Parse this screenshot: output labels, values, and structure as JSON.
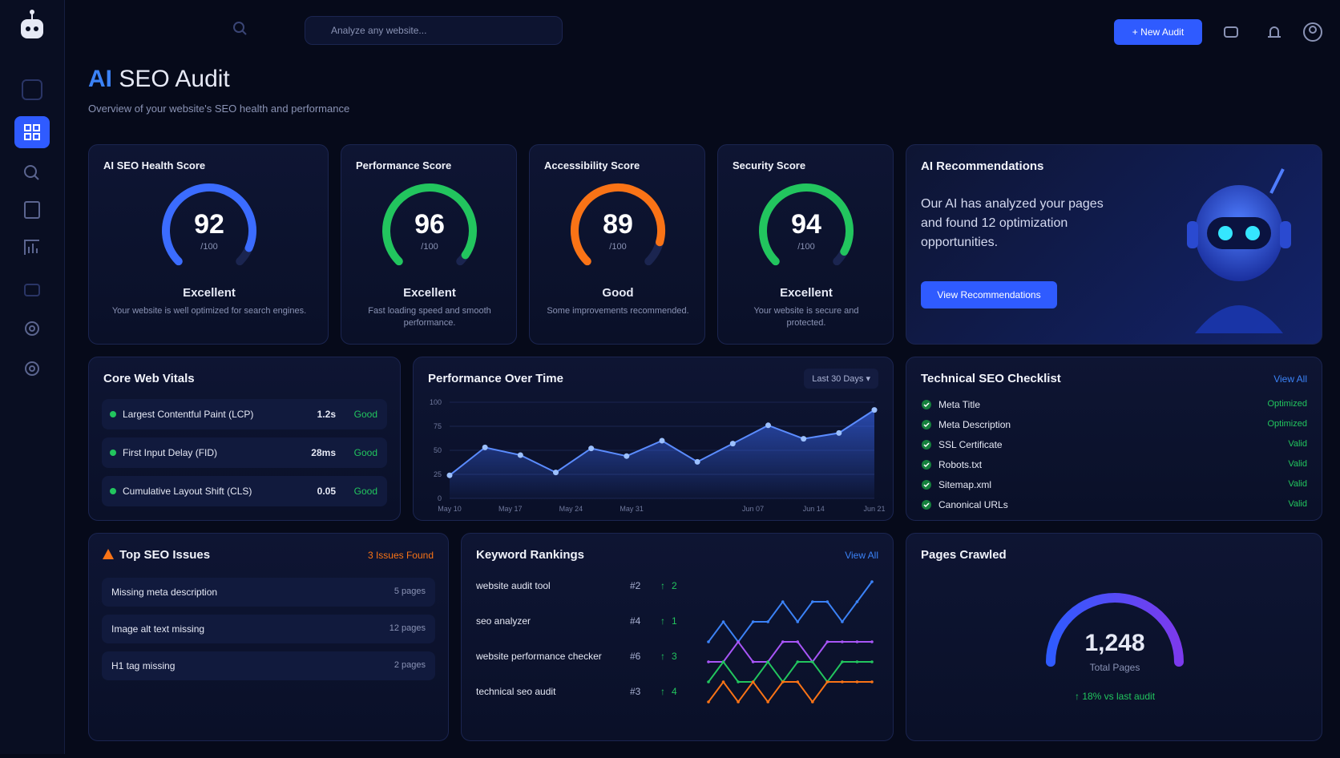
{
  "search_placeholder": "Analyze any website...",
  "header": {
    "new_audit": "New Audit"
  },
  "title": {
    "accent": "AI",
    "rest": "SEO Audit",
    "subtitle": "Overview of your website's SEO health and performance"
  },
  "scores": [
    {
      "title": "AI SEO Health Score",
      "value": 92,
      "out_of": {
        "value": 100,
        "label": "/100"
      },
      "rating": "Excellent",
      "description": "Your website is well optimized for search engines.",
      "color": "#3b6cff"
    },
    {
      "title": "Performance Score",
      "value": 96,
      "out_of": {
        "value": 100,
        "label": "/100"
      },
      "rating": "Excellent",
      "description": "Fast loading speed and smooth performance.",
      "color": "#22c55e"
    },
    {
      "title": "Accessibility Score",
      "value": 89,
      "out_of": {
        "value": 100,
        "label": "/100"
      },
      "rating": "Good",
      "description": "Some improvements recommended.",
      "color": "#f97316"
    },
    {
      "title": "Security Score",
      "value": 94,
      "out_of": {
        "value": 100,
        "label": "/100"
      },
      "rating": "Excellent",
      "description": "Your website is secure and protected.",
      "color": "#22c55e"
    }
  ],
  "recommendations": {
    "title": "AI Recommendations",
    "text": "Our AI has analyzed your pages and found 12 optimization opportunities.",
    "button": "View Recommendations"
  },
  "core_web_vitals": {
    "title": "Core Web Vitals",
    "items": [
      {
        "name": "Largest Contentful Paint (LCP)",
        "value": "1.2s",
        "status": "Good"
      },
      {
        "name": "First Input Delay (FID)",
        "value": "28ms",
        "status": "Good"
      },
      {
        "name": "Cumulative Layout Shift (CLS)",
        "value": "0.05",
        "status": "Good"
      }
    ]
  },
  "performance_chart": {
    "type": "line",
    "title": "Performance Over Time",
    "range": "Last 30 Days",
    "x_labels": [
      "May 10",
      "May 17",
      "May 24",
      "May 31",
      null,
      "Jun 07",
      "Jun 14",
      "Jun 21"
    ],
    "values": [
      24,
      53,
      45,
      27,
      52,
      44,
      60,
      38,
      57,
      76,
      62,
      68,
      92
    ],
    "ylim": [
      0,
      100
    ],
    "yticks": [
      0,
      25,
      50,
      75,
      100
    ],
    "color": "#3b6cff"
  },
  "checklist": {
    "title": "Technical SEO Checklist",
    "link": "View All",
    "items": [
      {
        "name": "Meta Title",
        "status": "Optimized"
      },
      {
        "name": "Meta Description",
        "status": "Optimized"
      },
      {
        "name": "SSL Certificate",
        "status": "Valid"
      },
      {
        "name": "Robots.txt",
        "status": "Valid"
      },
      {
        "name": "Sitemap.xml",
        "status": "Valid"
      },
      {
        "name": "Canonical URLs",
        "status": "Valid"
      }
    ]
  },
  "issues": {
    "title": "Top SEO Issues",
    "badge": "3 Issues Found",
    "items": [
      {
        "name": "Missing meta description",
        "pages": "5 pages"
      },
      {
        "name": "Image alt text missing",
        "pages": "12 pages"
      },
      {
        "name": "H1 tag missing",
        "pages": "2 pages"
      }
    ]
  },
  "keywords": {
    "title": "Keyword Rankings",
    "link": "View All",
    "rows": [
      {
        "keyword": "website audit tool",
        "rank": "#2",
        "change": 2,
        "color": "#3b82f6",
        "trend": [
          5,
          6,
          5,
          6,
          6,
          7,
          6,
          7,
          7,
          6,
          7,
          8
        ]
      },
      {
        "keyword": "seo analyzer",
        "rank": "#4",
        "change": 1,
        "color": "#a855f7",
        "trend": [
          4,
          4,
          5,
          4,
          4,
          5,
          5,
          4,
          5,
          5,
          5,
          5
        ]
      },
      {
        "keyword": "website performance checker",
        "rank": "#6",
        "change": 3,
        "color": "#22c55e",
        "trend": [
          3,
          4,
          3,
          3,
          4,
          3,
          4,
          4,
          3,
          4,
          4,
          4
        ]
      },
      {
        "keyword": "technical seo audit",
        "rank": "#3",
        "change": 4,
        "color": "#f97316",
        "trend": [
          2,
          3,
          2,
          3,
          2,
          3,
          3,
          2,
          3,
          3,
          3,
          3
        ]
      }
    ]
  },
  "pages_crawled": {
    "title": "Pages Crawled",
    "value": {
      "value": 1248,
      "label": "1,248"
    },
    "caption": "Total Pages",
    "delta": "18% vs last audit"
  }
}
